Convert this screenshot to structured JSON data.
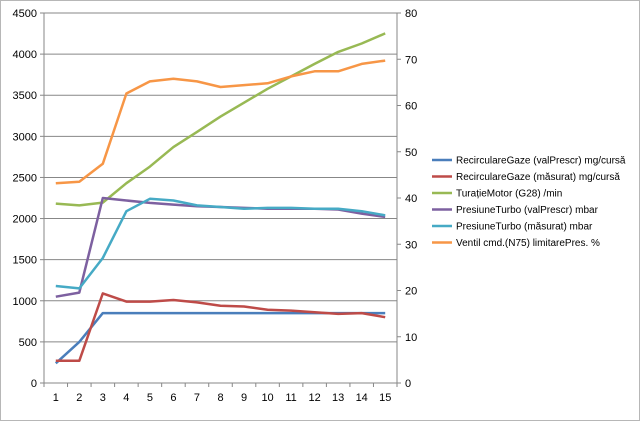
{
  "chart_data": {
    "type": "line",
    "x": [
      1,
      2,
      3,
      4,
      5,
      6,
      7,
      8,
      9,
      10,
      11,
      12,
      13,
      14,
      15
    ],
    "y_left": {
      "min": 0,
      "max": 4500,
      "step": 500,
      "ticks": [
        "0",
        "500",
        "1000",
        "1500",
        "2000",
        "2500",
        "3000",
        "3500",
        "4000",
        "4500"
      ]
    },
    "y_right": {
      "min": 0,
      "max": 80,
      "step": 10,
      "ticks": [
        "0",
        "10",
        "20",
        "30",
        "40",
        "50",
        "60",
        "70",
        "80"
      ]
    },
    "x_ticks": [
      "1",
      "2",
      "3",
      "4",
      "5",
      "6",
      "7",
      "8",
      "9",
      "10",
      "11",
      "12",
      "13",
      "14",
      "15"
    ],
    "grid": true,
    "legend_position": "right",
    "series": [
      {
        "name": "RecirculareGaze (valPrescr)  mg/cursă",
        "axis": "left",
        "color": "#4a7ebb",
        "values": [
          240,
          500,
          850,
          850,
          850,
          850,
          850,
          850,
          850,
          850,
          850,
          850,
          850,
          850,
          850
        ]
      },
      {
        "name": "RecirculareGaze (măsurat)  mg/cursă",
        "axis": "left",
        "color": "#be4b48",
        "values": [
          270,
          270,
          1090,
          990,
          990,
          1010,
          980,
          940,
          930,
          890,
          880,
          860,
          840,
          850,
          800
        ]
      },
      {
        "name": "TurațieMotor (G28)  /min",
        "axis": "right",
        "color": "#98b954",
        "values": [
          38.8,
          38.4,
          39.0,
          43.2,
          46.8,
          51.0,
          54.3,
          57.6,
          60.6,
          63.6,
          66.3,
          69.0,
          71.6,
          73.4,
          75.6
        ]
      },
      {
        "name": "PresiuneTurbo (valPrescr)  mbar",
        "axis": "left",
        "color": "#7d60a0",
        "values": [
          1050,
          1100,
          2250,
          2220,
          2190,
          2170,
          2150,
          2140,
          2130,
          2120,
          2120,
          2120,
          2110,
          2060,
          2020
        ]
      },
      {
        "name": "PresiuneTurbo (măsurat)  mbar",
        "axis": "left",
        "color": "#46aac5",
        "values": [
          1180,
          1150,
          1520,
          2090,
          2240,
          2220,
          2160,
          2140,
          2120,
          2130,
          2130,
          2120,
          2120,
          2090,
          2040
        ]
      },
      {
        "name": "Ventil cmd.(N75) limitarePres.  %",
        "axis": "right",
        "color": "#f79646",
        "values": [
          43.2,
          43.5,
          47.4,
          62.6,
          65.2,
          65.8,
          65.2,
          64.0,
          64.4,
          64.8,
          66.3,
          67.4,
          67.4,
          69.0,
          69.7
        ]
      }
    ]
  }
}
